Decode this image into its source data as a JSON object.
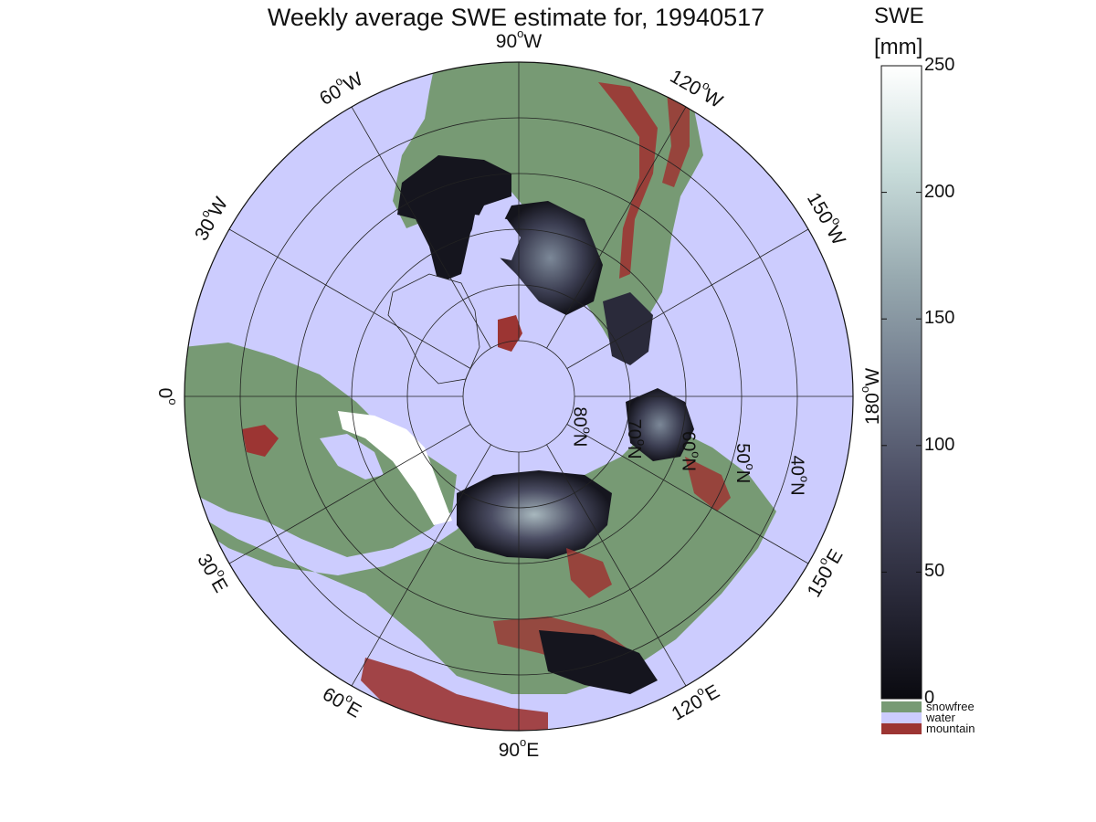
{
  "title": "Weekly average SWE estimate for, 19940517",
  "colorbar": {
    "title_line1": "SWE",
    "title_line2": "[mm]",
    "ticks": [
      {
        "value": 250,
        "label": "250"
      },
      {
        "value": 200,
        "label": "200"
      },
      {
        "value": 150,
        "label": "150"
      },
      {
        "value": 100,
        "label": "100"
      },
      {
        "value": 50,
        "label": "50"
      },
      {
        "value": 0,
        "label": "0"
      }
    ],
    "range": [
      0,
      250
    ],
    "gradient_colors": [
      "#0a0a10",
      "#2a2a3a",
      "#4a4c62",
      "#707a8c",
      "#98aab0",
      "#c8dcda",
      "#ffffff"
    ]
  },
  "categories": [
    {
      "label": "snowfree",
      "color": "#779a74"
    },
    {
      "label": "water",
      "color": "#ccccfe"
    },
    {
      "label": "mountain",
      "color": "#9c3533"
    }
  ],
  "lon_labels": [
    {
      "label": "90°W",
      "main": "90",
      "sup": "o",
      "suffix": "W"
    },
    {
      "label": "120°W",
      "main": "120",
      "sup": "o",
      "suffix": "W"
    },
    {
      "label": "150°W",
      "main": "150",
      "sup": "o",
      "suffix": "W"
    },
    {
      "label": "180°W",
      "main": "180",
      "sup": "o",
      "suffix": "W"
    },
    {
      "label": "150°E",
      "main": "150",
      "sup": "o",
      "suffix": "E"
    },
    {
      "label": "120°E",
      "main": "120",
      "sup": "o",
      "suffix": "E"
    },
    {
      "label": "90°E",
      "main": "90",
      "sup": "o",
      "suffix": "E"
    },
    {
      "label": "60°E",
      "main": "60",
      "sup": "o",
      "suffix": "E"
    },
    {
      "label": "30°E",
      "main": "30",
      "sup": "o",
      "suffix": "E"
    },
    {
      "label": "0°",
      "main": "0",
      "sup": "o",
      "suffix": ""
    },
    {
      "label": "30°W",
      "main": "30",
      "sup": "o",
      "suffix": "W"
    },
    {
      "label": "60°W",
      "main": "60",
      "sup": "o",
      "suffix": "W"
    }
  ],
  "lat_labels": [
    {
      "label": "80°N",
      "main": "80",
      "sup": "o",
      "suffix": "N"
    },
    {
      "label": "70°N",
      "main": "70",
      "sup": "o",
      "suffix": "N"
    },
    {
      "label": "60°N",
      "main": "60",
      "sup": "o",
      "suffix": "N"
    },
    {
      "label": "50°N",
      "main": "50",
      "sup": "o",
      "suffix": "N"
    },
    {
      "label": "40°N",
      "main": "40",
      "sup": "o",
      "suffix": "N"
    }
  ],
  "colors": {
    "water": "#ccccfe",
    "snowfree": "#779a74",
    "mountain": "#9c3533",
    "grid": "#222222"
  }
}
